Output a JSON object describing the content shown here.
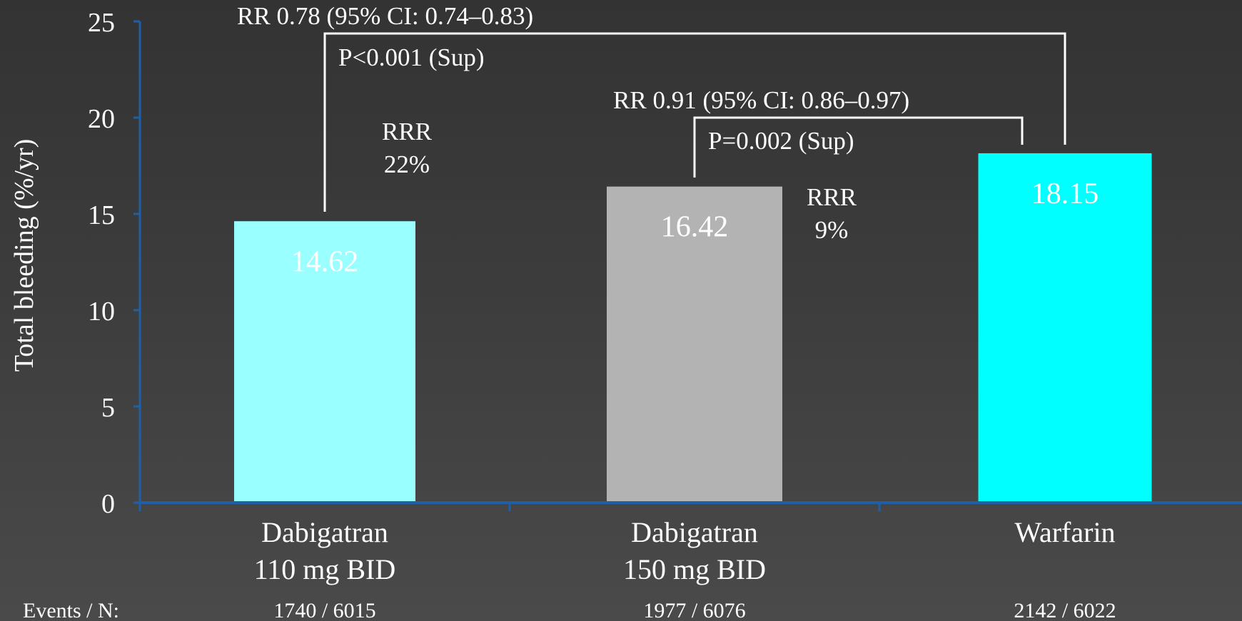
{
  "chart_data": {
    "type": "bar",
    "title": "",
    "xlabel": "",
    "ylabel": "Total bleeding (%/yr)",
    "ylim": [
      0,
      25
    ],
    "yticks": [
      0,
      5,
      10,
      15,
      20,
      25
    ],
    "grid": false,
    "categories": [
      [
        "Dabigatran",
        "110 mg BID"
      ],
      [
        "Dabigatran",
        "150 mg BID"
      ],
      [
        "Warfarin"
      ]
    ],
    "values": [
      14.62,
      16.42,
      18.15
    ],
    "value_labels": [
      "14.62",
      "16.42",
      "18.15"
    ],
    "bar_colors": [
      "#99ffff",
      "#b3b3b3",
      "#00ffff"
    ],
    "events_label": "Events / N:",
    "events": [
      "1740 / 6015",
      "1977 / 6076",
      "2142 / 6022"
    ],
    "comparisons": [
      {
        "rr": "RR 0.78 (95% CI: 0.74–0.83)",
        "p": "P<0.001 (Sup)",
        "rrr": [
          "RRR",
          "22%"
        ]
      },
      {
        "rr": "RR 0.91 (95% CI: 0.86–0.97)",
        "p": "P=0.002 (Sup)",
        "rrr": [
          "RRR",
          "9%"
        ]
      }
    ]
  },
  "colors": {
    "axis": "#1f5fa8",
    "text": "#ffffff"
  }
}
